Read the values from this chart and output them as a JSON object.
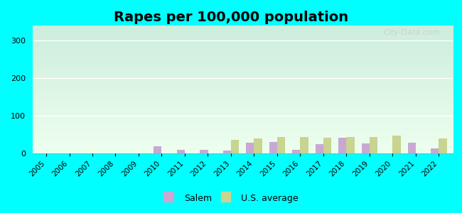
{
  "title": "Rapes per 100,000 population",
  "years": [
    2005,
    2006,
    2007,
    2008,
    2009,
    2010,
    2011,
    2012,
    2013,
    2014,
    2015,
    2016,
    2017,
    2018,
    2019,
    2020,
    2021,
    2022
  ],
  "salem": [
    0,
    0,
    0,
    0,
    0,
    18,
    10,
    10,
    8,
    28,
    30,
    10,
    25,
    42,
    27,
    0,
    28,
    14
  ],
  "us_avg": [
    0,
    0,
    0,
    0,
    0,
    0,
    0,
    0,
    36,
    40,
    43,
    43,
    42,
    44,
    43,
    47,
    0,
    40
  ],
  "salem_color": "#c9a8d4",
  "us_avg_color": "#c8d490",
  "background_outer": "#00ffff",
  "grad_top": "#cceedd",
  "grad_bottom": "#eeffee",
  "ylim": [
    0,
    340
  ],
  "yticks": [
    0,
    100,
    200,
    300
  ],
  "title_fontsize": 14,
  "legend_salem": "Salem",
  "legend_us": "U.S. average",
  "watermark": "City-Data.com"
}
